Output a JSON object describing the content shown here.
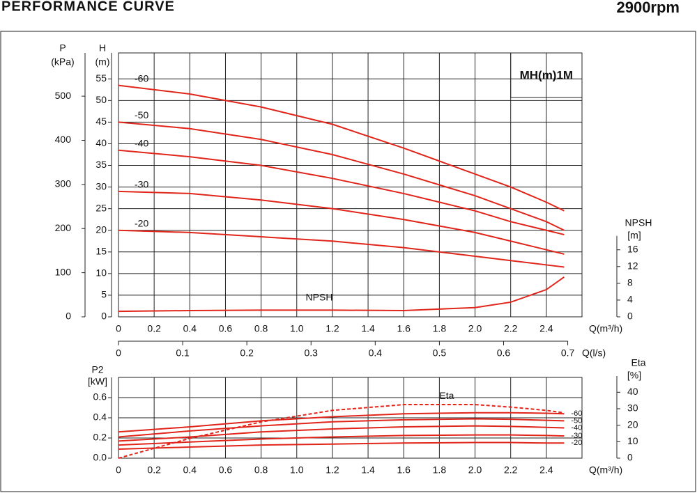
{
  "title": "PERFORMANCE CURVE",
  "speed": "2900rpm",
  "chart_data": [
    {
      "type": "line",
      "model": "MH(m)1M",
      "xlabel": "Q(m³/h)",
      "xlim": [
        0,
        2.6
      ],
      "xticks": [
        0,
        0.2,
        0.4,
        0.6,
        0.8,
        {
          "value": 1.0,
          "label": "1.0"
        },
        1.2,
        1.4,
        1.6,
        1.8,
        {
          "value": 2.0,
          "label": "2.0"
        },
        2.2,
        2.4
      ],
      "x2label": "Q(l/s)",
      "x2lim": [
        0,
        0.7222
      ],
      "x2ticks": [
        0,
        0.1,
        0.2,
        0.3,
        0.4,
        0.5,
        0.6,
        0.7
      ],
      "ylabel": "H",
      "yunit": "(m)",
      "ylim": [
        0,
        61
      ],
      "yticks": [
        0,
        5,
        10,
        15,
        20,
        25,
        30,
        35,
        40,
        45,
        50,
        55
      ],
      "plabel": "P",
      "punit": "(kPa)",
      "plim": [
        0,
        598
      ],
      "pticks": [
        0,
        100,
        200,
        300,
        400,
        500
      ],
      "y2label": "NPSH",
      "y2unit": "[m]",
      "y2lim": [
        0,
        63
      ],
      "y2ticks": [
        0,
        4,
        8,
        12,
        16
      ],
      "grid": true,
      "x": [
        0,
        0.4,
        0.8,
        1.2,
        1.6,
        2.0,
        2.2,
        2.4,
        2.5
      ],
      "series": [
        {
          "name": "-60",
          "color": "#e1251b",
          "values": [
            53.5,
            51.5,
            48.5,
            44.5,
            39,
            33,
            30,
            26.5,
            24.5
          ]
        },
        {
          "name": "-50",
          "color": "#e1251b",
          "values": [
            45,
            43.5,
            41,
            37.5,
            33,
            28,
            25,
            22,
            20
          ]
        },
        {
          "name": "-40",
          "color": "#e1251b",
          "values": [
            38.5,
            37,
            35,
            32,
            28.5,
            24.5,
            22,
            20,
            19
          ]
        },
        {
          "name": "-30",
          "color": "#e1251b",
          "values": [
            29,
            28.5,
            27,
            25,
            22.5,
            19.5,
            17.5,
            15.5,
            14.5
          ]
        },
        {
          "name": "-20",
          "color": "#e1251b",
          "values": [
            20,
            19.5,
            18.5,
            17.5,
            16,
            14,
            13,
            12,
            11.5
          ]
        },
        {
          "name": "NPSH",
          "color": "#e1251b",
          "axis": "y2",
          "values": [
            1.3,
            1.5,
            1.6,
            1.6,
            1.5,
            2.2,
            3.5,
            6.5,
            9.5
          ]
        }
      ]
    },
    {
      "type": "line",
      "xlabel": "Q(m³/h)",
      "xlim": [
        0,
        2.6
      ],
      "xticks": [
        0,
        0.2,
        0.4,
        0.6,
        0.8,
        {
          "value": 1.0,
          "label": "1.0"
        },
        1.2,
        1.4,
        1.6,
        1.8,
        {
          "value": 2.0,
          "label": "2.0"
        },
        2.2,
        2.4
      ],
      "ylabel": "P2",
      "yunit": "[kW]",
      "ylim": [
        0,
        0.8
      ],
      "yticks": [
        {
          "value": 0,
          "label": "0.0"
        },
        0.2,
        0.4,
        0.6
      ],
      "y2label": "Eta",
      "y2unit": "[%]",
      "y2lim": [
        0,
        49
      ],
      "y2ticks": [
        0,
        10,
        20,
        30,
        40
      ],
      "grid": true,
      "x": [
        0,
        0.4,
        0.8,
        1.2,
        1.6,
        2.0,
        2.2,
        2.4,
        2.5
      ],
      "series": [
        {
          "name": "-60",
          "color": "#e1251b",
          "values": [
            0.26,
            0.31,
            0.37,
            0.41,
            0.44,
            0.45,
            0.45,
            0.445,
            0.44
          ]
        },
        {
          "name": "-50",
          "color": "#e1251b",
          "values": [
            0.21,
            0.27,
            0.32,
            0.36,
            0.38,
            0.39,
            0.385,
            0.375,
            0.37
          ]
        },
        {
          "name": "-40",
          "color": "#e1251b",
          "values": [
            0.17,
            0.21,
            0.26,
            0.29,
            0.31,
            0.32,
            0.315,
            0.305,
            0.3
          ]
        },
        {
          "name": "-30",
          "color": "#e1251b",
          "values": [
            0.13,
            0.16,
            0.19,
            0.21,
            0.225,
            0.23,
            0.23,
            0.225,
            0.22
          ]
        },
        {
          "name": "-20",
          "color": "#e1251b",
          "values": [
            0.09,
            0.11,
            0.13,
            0.14,
            0.15,
            0.155,
            0.155,
            0.15,
            0.15
          ]
        },
        {
          "name": "Eta",
          "color": "#e1251b",
          "axis": "y2",
          "dash": true,
          "values": [
            0,
            12,
            22,
            29,
            32.5,
            32.5,
            31,
            29,
            27.5
          ]
        }
      ]
    }
  ]
}
